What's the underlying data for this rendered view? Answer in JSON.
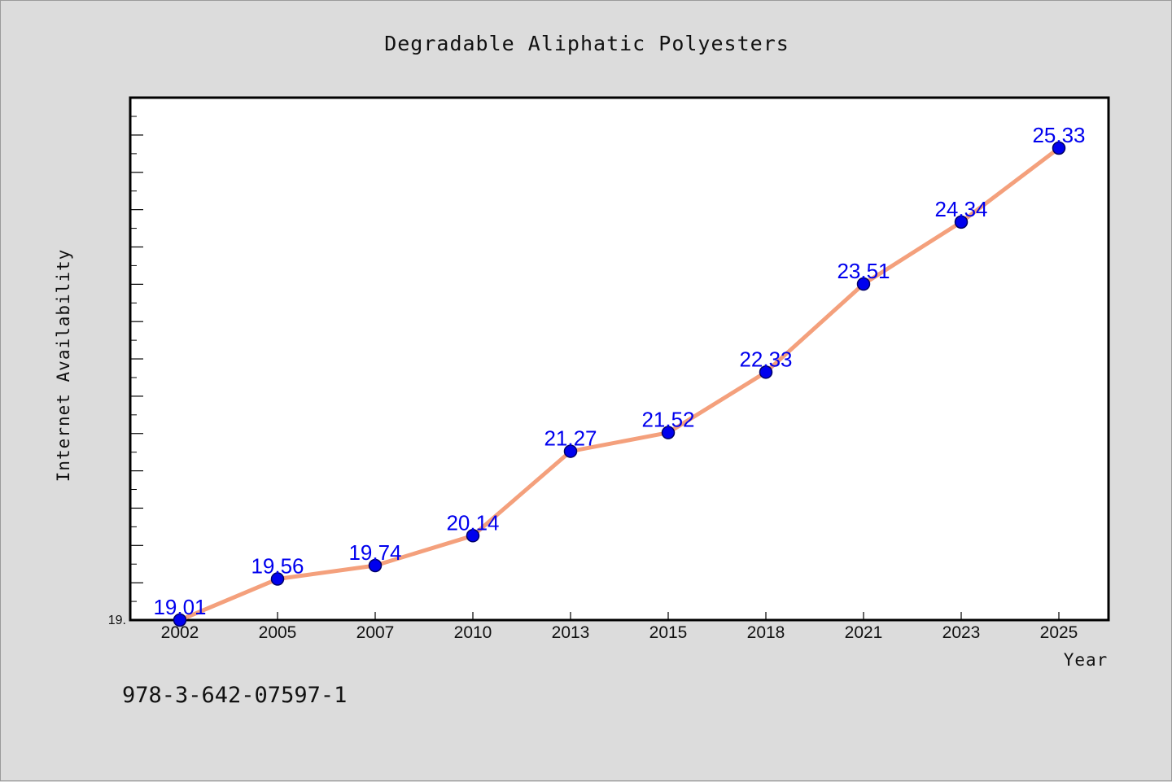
{
  "chart_data": {
    "type": "line",
    "title": "Degradable Aliphatic Polyesters",
    "xlabel": "Year",
    "ylabel": "Internet Availability",
    "categories": [
      "2002",
      "2005",
      "2007",
      "2010",
      "2013",
      "2015",
      "2018",
      "2021",
      "2023",
      "2025"
    ],
    "series": [
      {
        "values": [
          19.01,
          19.56,
          19.74,
          20.14,
          21.27,
          21.52,
          22.33,
          23.51,
          24.34,
          25.33
        ]
      }
    ],
    "data_labels": [
      "19.01",
      "19.56",
      "19.74",
      "20.14",
      "21.27",
      "21.52",
      "22.33",
      "23.51",
      "24.34",
      "25.33"
    ],
    "yticks": [
      "19."
    ],
    "ylim": [
      19.01,
      25.33
    ],
    "grid": false,
    "colors": {
      "line": "#f4a07c",
      "marker": "#0000ee",
      "marker_edge": "#000066",
      "data_label": "#0000ee",
      "plot_background": "#ffffff",
      "figure_background": "#dcdcdc"
    }
  },
  "footer": {
    "identifier": "978-3-642-07597-1"
  }
}
